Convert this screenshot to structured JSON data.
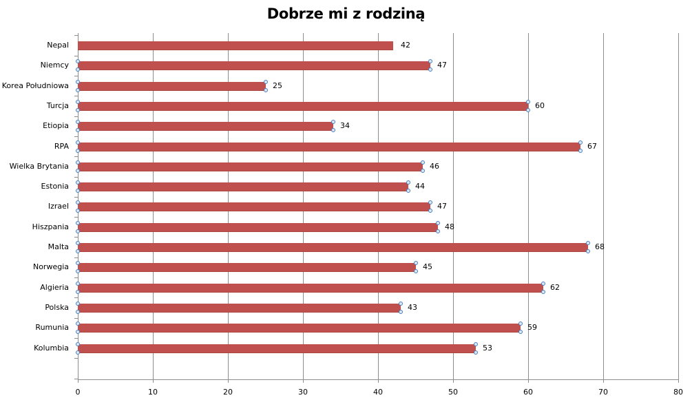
{
  "chart_data": {
    "type": "bar",
    "orientation": "horizontal",
    "title": "Dobrze mi z rodziną",
    "xlabel": "",
    "ylabel": "",
    "xlim": [
      0,
      80
    ],
    "x_ticks": [
      0,
      10,
      20,
      30,
      40,
      50,
      60,
      70,
      80
    ],
    "grid": "vertical major gridlines",
    "legend": "none",
    "bar_color": "#c0504d",
    "data_labels": true,
    "categories": [
      "Nepal",
      "Niemcy",
      "Korea Południowa",
      "Turcja",
      "Etiopia",
      "RPA",
      "Wielka Brytania",
      "Estonia",
      "Izrael",
      "Hiszpania",
      "Malta",
      "Norwegia",
      "Algieria",
      "Polska",
      "Rumunia",
      "Kolumbia"
    ],
    "values": [
      42,
      47,
      25,
      60,
      34,
      67,
      46,
      44,
      47,
      48,
      68,
      45,
      62,
      43,
      59,
      53
    ],
    "selected_bars_with_handles": [
      "Niemcy",
      "Korea Południowa",
      "Turcja",
      "Etiopia",
      "RPA",
      "Wielka Brytania",
      "Estonia",
      "Izrael",
      "Hiszpania",
      "Malta",
      "Norwegia",
      "Algieria",
      "Polska",
      "Rumunia",
      "Kolumbia"
    ]
  }
}
